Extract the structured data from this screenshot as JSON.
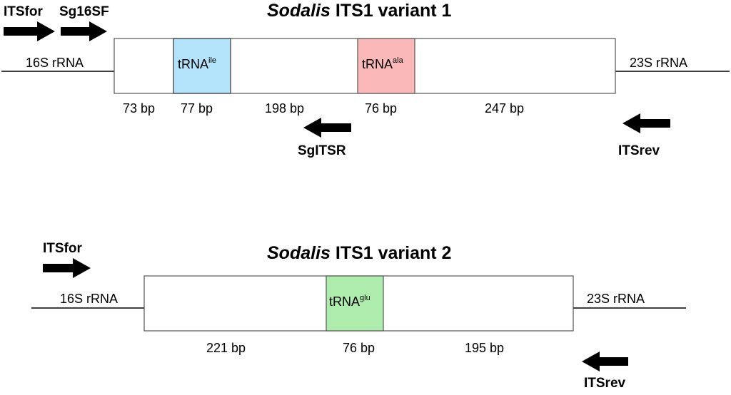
{
  "variant1": {
    "title_italic": "Sodalis",
    "title_rest": " ITS1 variant 1",
    "primers": {
      "its_for": "ITSfor",
      "sg16sf": "Sg16SF",
      "sgitsr": "SgITSR",
      "its_rev": "ITSrev"
    },
    "left_flank": "16S rRNA",
    "right_flank": "23S rRNA",
    "trna1": {
      "base": "tRNA",
      "sup": "ile",
      "color": "#b3e3fa"
    },
    "trna2": {
      "base": "tRNA",
      "sup": "ala",
      "color": "#fbb8b8"
    },
    "segments": [
      "73 bp",
      "77 bp",
      "198 bp",
      "76 bp",
      "247 bp"
    ]
  },
  "variant2": {
    "title_italic": "Sodalis",
    "title_rest": " ITS1 variant 2",
    "primers": {
      "its_for": "ITSfor",
      "its_rev": "ITSrev"
    },
    "left_flank": "16S rRNA",
    "right_flank": "23S rRNA",
    "trna": {
      "base": "tRNA",
      "sup": "glu",
      "color": "#adecad"
    },
    "segments": [
      "221 bp",
      "76 bp",
      "195 bp"
    ]
  },
  "colors": {
    "line": "#000000",
    "box_border": "#555555"
  }
}
